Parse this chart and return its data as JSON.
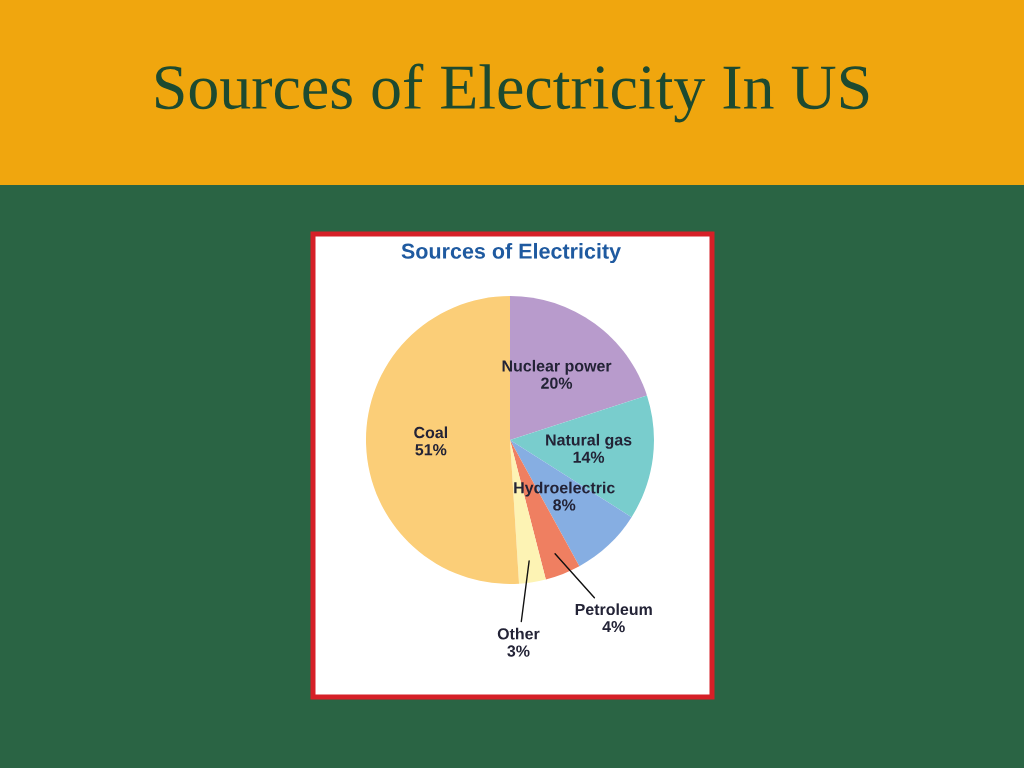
{
  "chart_data": {
    "type": "pie",
    "title": "Sources of Electricity In US",
    "subtitle": "Sources of Electricity",
    "categories": [
      "Nuclear power",
      "Natural gas",
      "Hydroelectric",
      "Petroleum",
      "Other",
      "Coal"
    ],
    "values": [
      20,
      14,
      8,
      4,
      3,
      51
    ],
    "colors": [
      "#b89bcc",
      "#79cdcd",
      "#86aee2",
      "#ef7f61",
      "#fdf3b4",
      "#fbce78"
    ],
    "value_labels": [
      "20%",
      "14%",
      "8%",
      "4%",
      "3%",
      "51%"
    ]
  }
}
